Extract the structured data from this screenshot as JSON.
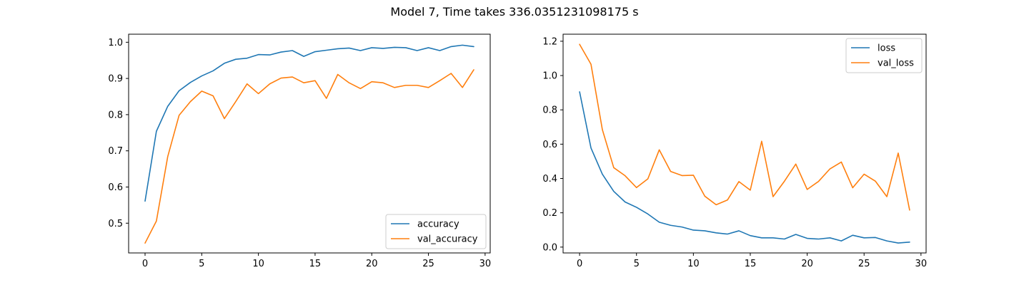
{
  "title": "Model 7, Time takes 336.0351231098175 s",
  "chart_data": [
    {
      "type": "line",
      "x": [
        0,
        1,
        2,
        3,
        4,
        5,
        6,
        7,
        8,
        9,
        10,
        11,
        12,
        13,
        14,
        15,
        16,
        17,
        18,
        19,
        20,
        21,
        22,
        23,
        24,
        25,
        26,
        27,
        28,
        29
      ],
      "series": [
        {
          "name": "accuracy",
          "color": "#1f77b4",
          "values": [
            0.561,
            0.754,
            0.823,
            0.866,
            0.889,
            0.907,
            0.921,
            0.942,
            0.953,
            0.956,
            0.966,
            0.965,
            0.973,
            0.977,
            0.961,
            0.974,
            0.978,
            0.982,
            0.984,
            0.977,
            0.985,
            0.983,
            0.986,
            0.985,
            0.977,
            0.985,
            0.977,
            0.988,
            0.992,
            0.988
          ]
        },
        {
          "name": "val_accuracy",
          "color": "#ff7f0e",
          "values": [
            0.445,
            0.506,
            0.684,
            0.798,
            0.836,
            0.865,
            0.852,
            0.789,
            0.836,
            0.885,
            0.858,
            0.885,
            0.901,
            0.904,
            0.888,
            0.894,
            0.845,
            0.911,
            0.888,
            0.872,
            0.891,
            0.888,
            0.875,
            0.881,
            0.881,
            0.875,
            0.894,
            0.914,
            0.875,
            0.924
          ]
        }
      ],
      "xticks": [
        0,
        5,
        10,
        15,
        20,
        25,
        30
      ],
      "yticks": [
        0.5,
        0.6,
        0.7,
        0.8,
        0.9,
        1.0
      ],
      "ytick_labels": [
        "0.5",
        "0.6",
        "0.7",
        "0.8",
        "0.9",
        "1.0"
      ],
      "xlim": [
        -1.45,
        30.45
      ],
      "ylim": [
        0.4178,
        1.0223
      ],
      "xlabel": "",
      "ylabel": "",
      "legend": "lower right",
      "grid": false
    },
    {
      "type": "line",
      "x": [
        0,
        1,
        2,
        3,
        4,
        5,
        6,
        7,
        8,
        9,
        10,
        11,
        12,
        13,
        14,
        15,
        16,
        17,
        18,
        19,
        20,
        21,
        22,
        23,
        24,
        25,
        26,
        27,
        28,
        29
      ],
      "series": [
        {
          "name": "loss",
          "color": "#1f77b4",
          "values": [
            0.905,
            0.578,
            0.425,
            0.325,
            0.263,
            0.232,
            0.193,
            0.145,
            0.127,
            0.117,
            0.099,
            0.095,
            0.083,
            0.076,
            0.095,
            0.067,
            0.054,
            0.054,
            0.047,
            0.074,
            0.051,
            0.047,
            0.054,
            0.036,
            0.069,
            0.054,
            0.056,
            0.036,
            0.024,
            0.029
          ]
        },
        {
          "name": "val_loss",
          "color": "#ff7f0e",
          "values": [
            1.182,
            1.066,
            0.685,
            0.463,
            0.416,
            0.347,
            0.398,
            0.567,
            0.441,
            0.417,
            0.419,
            0.297,
            0.247,
            0.275,
            0.382,
            0.332,
            0.617,
            0.294,
            0.384,
            0.484,
            0.336,
            0.383,
            0.456,
            0.496,
            0.346,
            0.425,
            0.384,
            0.294,
            0.548,
            0.216
          ]
        }
      ],
      "xticks": [
        0,
        5,
        10,
        15,
        20,
        25,
        30
      ],
      "yticks": [
        0.0,
        0.2,
        0.4,
        0.6,
        0.8,
        1.0,
        1.2
      ],
      "ytick_labels": [
        "0.0",
        "0.2",
        "0.4",
        "0.6",
        "0.8",
        "1.0",
        "1.2"
      ],
      "xlim": [
        -1.45,
        30.45
      ],
      "ylim": [
        -0.034,
        1.241
      ],
      "xlabel": "",
      "ylabel": "",
      "legend": "upper right",
      "grid": false
    }
  ]
}
